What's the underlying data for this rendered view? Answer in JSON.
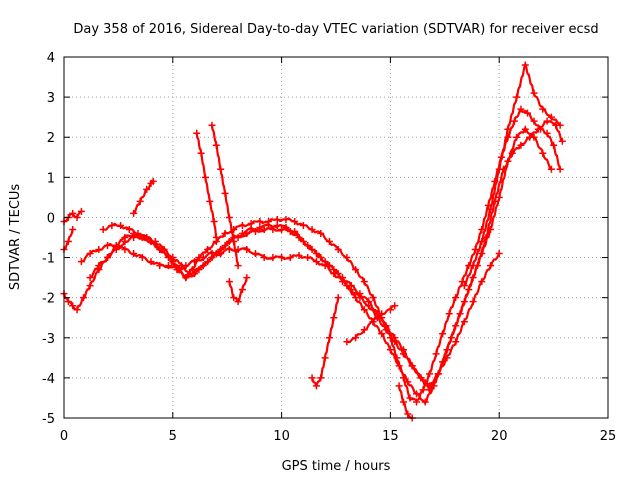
{
  "chart_data": {
    "type": "scatter",
    "title": "Day 358 of 2016, Sidereal Day-to-day VTEC variation (SDTVAR) for receiver ecsd",
    "xlabel": "GPS time / hours",
    "ylabel": "SDTVAR / TECUs",
    "xlim": [
      0,
      25
    ],
    "ylim": [
      -5,
      4
    ],
    "xticks": [
      0,
      5,
      10,
      15,
      20,
      25
    ],
    "yticks": [
      -5,
      -4,
      -3,
      -2,
      -1,
      0,
      1,
      2,
      3,
      4
    ],
    "xtick_labels": [
      "0",
      "5",
      "10",
      "15",
      "20",
      "25"
    ],
    "ytick_labels": [
      "-5",
      "-4",
      "-3",
      "-2",
      "-1",
      "0",
      "1",
      "2",
      "3",
      "4"
    ],
    "grid": true,
    "marker": "+",
    "color": "#ff0000",
    "series": [
      {
        "name": "s1",
        "x": [
          0.0,
          0.2,
          0.4,
          0.6,
          0.9,
          1.2,
          1.6,
          2.0,
          2.4,
          2.8,
          3.2,
          3.6,
          4.0,
          4.5,
          5.0,
          5.3,
          5.6,
          5.9,
          6.2,
          6.6,
          7.0,
          7.4,
          7.8,
          8.2,
          8.6,
          9.0,
          9.4,
          9.8,
          10.2,
          10.6,
          11.0,
          11.4,
          11.8,
          12.2,
          12.6,
          13.0,
          13.4,
          13.8,
          14.2,
          14.6,
          15.0,
          15.3,
          15.6,
          15.9,
          16.2,
          16.5,
          16.8,
          17.1,
          17.4,
          17.7,
          18.0,
          18.3,
          18.6,
          18.9,
          19.2,
          19.5,
          19.8,
          20.1,
          20.4,
          20.7,
          21.0,
          21.3,
          21.6,
          21.9,
          22.2,
          22.5,
          22.8
        ],
        "y": [
          -1.9,
          -2.1,
          -2.2,
          -2.3,
          -2.0,
          -1.7,
          -1.3,
          -1.0,
          -0.7,
          -0.5,
          -0.4,
          -0.5,
          -0.6,
          -0.8,
          -1.1,
          -1.3,
          -1.5,
          -1.3,
          -1.0,
          -0.8,
          -0.6,
          -0.4,
          -0.3,
          -0.2,
          -0.15,
          -0.1,
          -0.1,
          -0.05,
          -0.05,
          -0.1,
          -0.2,
          -0.3,
          -0.4,
          -0.6,
          -0.8,
          -1.0,
          -1.3,
          -1.6,
          -2.0,
          -2.5,
          -3.0,
          -3.5,
          -4.0,
          -4.5,
          -4.6,
          -4.3,
          -3.9,
          -3.4,
          -2.9,
          -2.4,
          -2.0,
          -1.6,
          -1.2,
          -0.8,
          -0.3,
          0.3,
          0.9,
          1.5,
          2.0,
          2.4,
          2.7,
          2.6,
          2.4,
          2.2,
          2.1,
          1.8,
          1.2
        ]
      },
      {
        "name": "s2",
        "x": [
          0.8,
          1.2,
          1.6,
          2.0,
          2.4,
          2.8,
          3.2,
          3.6,
          4.0,
          4.4,
          4.8,
          5.2,
          5.6,
          6.0,
          6.4,
          6.8,
          7.2,
          7.6,
          8.0,
          8.4,
          8.8,
          9.2,
          9.6,
          10.0,
          10.4,
          10.8,
          11.2,
          11.6,
          12.0,
          12.4,
          12.8,
          13.2,
          13.6,
          14.0,
          14.4,
          14.8,
          15.2,
          15.6,
          16.0,
          16.4,
          16.8,
          17.2,
          17.6,
          18.0,
          18.4,
          18.8,
          19.2,
          19.6,
          20.0
        ],
        "y": [
          -1.1,
          -0.9,
          -0.8,
          -0.7,
          -0.7,
          -0.8,
          -0.9,
          -1.0,
          -1.1,
          -1.2,
          -1.2,
          -1.3,
          -1.2,
          -1.1,
          -1.0,
          -0.9,
          -0.9,
          -0.8,
          -0.8,
          -0.8,
          -0.9,
          -1.0,
          -1.0,
          -1.0,
          -1.0,
          -0.95,
          -1.0,
          -1.1,
          -1.2,
          -1.4,
          -1.6,
          -1.8,
          -2.0,
          -2.2,
          -2.5,
          -2.8,
          -3.1,
          -3.4,
          -3.7,
          -4.0,
          -4.2,
          -3.9,
          -3.5,
          -3.1,
          -2.6,
          -2.1,
          -1.6,
          -1.2,
          -0.9
        ]
      },
      {
        "name": "s3",
        "x": [
          1.8,
          2.2,
          2.6,
          3.0,
          3.4,
          3.8,
          4.2,
          4.6,
          5.0,
          5.4,
          5.8,
          6.2,
          6.6,
          7.0,
          7.4,
          7.8,
          8.2,
          8.6,
          9.0,
          9.4,
          9.8,
          10.2,
          10.6,
          11.0,
          11.4,
          11.8,
          12.2,
          12.6,
          13.0,
          13.4,
          13.8,
          14.2,
          14.6,
          15.0,
          15.4,
          15.8,
          16.2,
          16.6,
          17.0,
          17.4,
          17.8,
          18.2,
          18.6,
          19.0,
          19.4,
          19.8,
          20.2,
          20.6,
          21.0,
          21.4,
          21.8,
          22.2,
          22.6,
          22.9
        ],
        "y": [
          -0.3,
          -0.2,
          -0.2,
          -0.3,
          -0.4,
          -0.5,
          -0.6,
          -0.8,
          -1.0,
          -1.2,
          -1.4,
          -1.3,
          -1.1,
          -0.9,
          -0.7,
          -0.5,
          -0.4,
          -0.3,
          -0.25,
          -0.2,
          -0.2,
          -0.25,
          -0.35,
          -0.6,
          -0.8,
          -1.0,
          -1.2,
          -1.4,
          -1.7,
          -2.0,
          -2.3,
          -2.6,
          -2.9,
          -3.3,
          -3.7,
          -4.1,
          -4.4,
          -4.6,
          -4.2,
          -3.6,
          -3.0,
          -2.4,
          -1.8,
          -1.2,
          -0.5,
          0.4,
          1.2,
          1.6,
          1.8,
          2.0,
          2.2,
          2.4,
          2.3,
          1.9
        ]
      },
      {
        "name": "s4",
        "x": [
          1.2,
          1.6,
          2.0,
          2.4,
          2.8,
          3.2,
          3.6,
          4.0,
          4.4,
          4.8,
          5.2,
          5.6,
          6.0,
          6.4,
          6.8,
          7.2,
          7.6,
          8.0,
          8.4,
          8.8,
          9.2,
          9.6,
          10.0,
          10.4,
          10.8,
          11.2,
          11.6,
          12.0,
          12.4,
          12.8,
          13.2,
          13.6,
          14.0,
          14.4,
          14.8,
          15.2,
          15.6,
          16.0,
          16.4,
          16.8,
          17.2,
          17.6,
          18.0,
          18.4,
          18.8,
          19.2,
          19.6,
          20.0,
          20.4,
          20.8,
          21.2,
          21.6,
          22.0,
          22.4
        ],
        "y": [
          -1.5,
          -1.2,
          -1.0,
          -0.8,
          -0.6,
          -0.5,
          -0.5,
          -0.6,
          -0.8,
          -1.0,
          -1.3,
          -1.5,
          -1.4,
          -1.2,
          -1.0,
          -0.8,
          -0.6,
          -0.5,
          -0.4,
          -0.35,
          -0.3,
          -0.3,
          -0.3,
          -0.35,
          -0.5,
          -0.7,
          -0.9,
          -1.1,
          -1.3,
          -1.5,
          -1.7,
          -1.9,
          -2.1,
          -2.4,
          -2.7,
          -3.0,
          -3.3,
          -3.7,
          -4.0,
          -4.3,
          -3.9,
          -3.3,
          -2.7,
          -2.1,
          -1.5,
          -0.9,
          -0.3,
          0.5,
          1.4,
          2.0,
          2.2,
          2.0,
          1.6,
          1.2
        ]
      },
      {
        "name": "s5",
        "x": [
          18.4,
          18.8,
          19.2,
          19.6,
          20.0,
          20.4,
          20.8,
          21.2,
          21.6,
          22.0,
          22.4,
          22.8
        ],
        "y": [
          -1.7,
          -1.2,
          -0.6,
          0.2,
          1.2,
          2.2,
          3.0,
          3.8,
          3.1,
          2.7,
          2.5,
          2.3
        ]
      },
      {
        "name": "s6",
        "x": [
          6.1,
          6.3,
          6.5,
          6.7,
          6.9,
          7.0
        ],
        "y": [
          2.1,
          1.6,
          1.0,
          0.4,
          -0.1,
          -0.5
        ]
      },
      {
        "name": "s7",
        "x": [
          6.8,
          7.0,
          7.2,
          7.4,
          7.6,
          7.8,
          8.0
        ],
        "y": [
          2.3,
          1.8,
          1.2,
          0.6,
          0.0,
          -0.6,
          -1.2
        ]
      },
      {
        "name": "s8",
        "x": [
          11.4,
          11.6,
          11.8,
          12.0,
          12.2,
          12.4,
          12.6
        ],
        "y": [
          -4.0,
          -4.2,
          -4.0,
          -3.5,
          -3.0,
          -2.5,
          -2.0
        ]
      },
      {
        "name": "s9",
        "x": [
          0.0,
          0.2,
          0.4,
          0.6,
          0.8
        ],
        "y": [
          -0.1,
          0.0,
          0.1,
          0.0,
          0.15
        ]
      },
      {
        "name": "s10",
        "x": [
          0.0,
          0.2,
          0.4
        ],
        "y": [
          -0.8,
          -0.6,
          -0.3
        ]
      },
      {
        "name": "s11",
        "x": [
          3.2,
          3.5,
          3.8,
          4.0,
          4.1
        ],
        "y": [
          0.1,
          0.4,
          0.7,
          0.85,
          0.9
        ]
      },
      {
        "name": "s12",
        "x": [
          15.4,
          15.6,
          15.8,
          16.0
        ],
        "y": [
          -4.2,
          -4.6,
          -4.9,
          -5.0
        ]
      },
      {
        "name": "s13",
        "x": [
          13.0,
          13.4,
          13.8,
          14.2,
          14.6,
          15.0,
          15.2
        ],
        "y": [
          -3.1,
          -3.0,
          -2.8,
          -2.6,
          -2.4,
          -2.3,
          -2.2
        ]
      },
      {
        "name": "s14",
        "x": [
          7.6,
          7.8,
          8.0,
          8.2,
          8.4
        ],
        "y": [
          -1.6,
          -2.0,
          -2.1,
          -1.8,
          -1.5
        ]
      }
    ]
  }
}
